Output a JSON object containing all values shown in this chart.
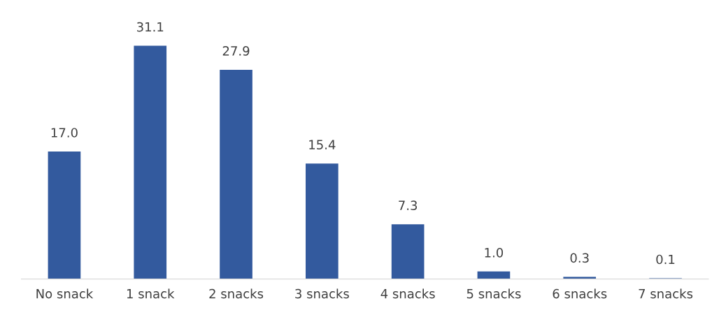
{
  "chart_data": {
    "type": "bar",
    "categories": [
      "No snack",
      "1 snack",
      "2 snacks",
      "3 snacks",
      "4 snacks",
      "5 snacks",
      "6 snacks",
      "7 snacks"
    ],
    "values": [
      17.0,
      31.1,
      27.9,
      15.4,
      7.3,
      1.0,
      0.3,
      0.1
    ],
    "value_labels": [
      "17.0",
      "31.1",
      "27.9",
      "15.4",
      "7.3",
      "1.0",
      "0.3",
      "0.1"
    ],
    "color": "#335a9e",
    "tick_labels": "x",
    "grid": false,
    "legend": false
  }
}
